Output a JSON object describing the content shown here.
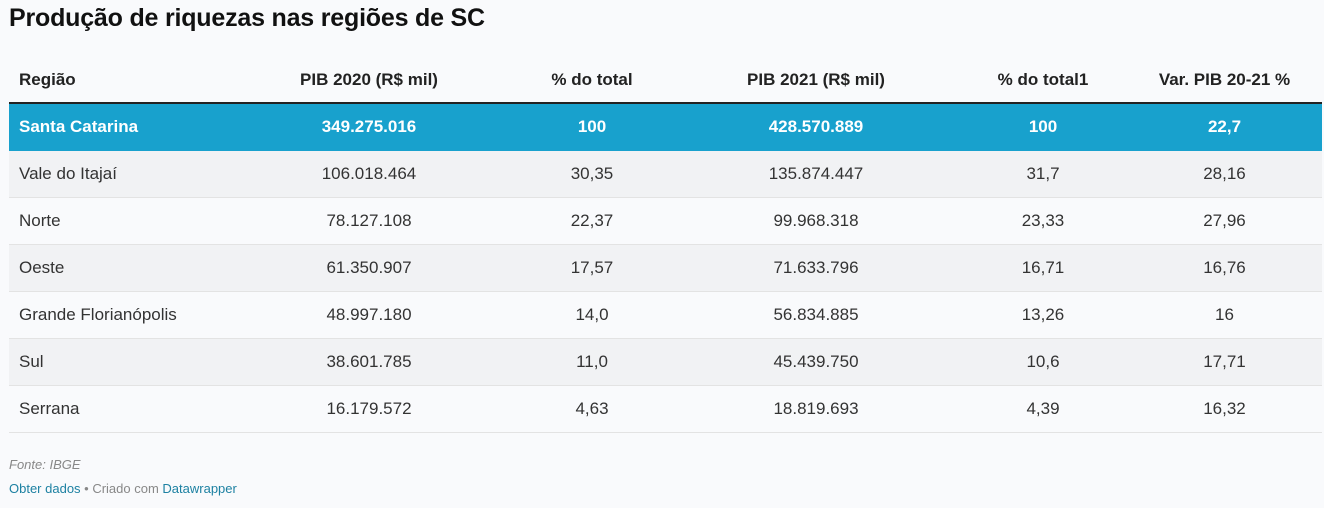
{
  "chart_data": {
    "type": "table",
    "title": "Produção de riquezas nas regiões de SC",
    "columns": [
      "Região",
      "PIB 2020 (R$ mil)",
      "% do total",
      "PIB 2021 (R$ mil)",
      "% do total1",
      "Var. PIB 20-21 %"
    ],
    "rows": [
      [
        "Santa Catarina",
        "349.275.016",
        "100",
        "428.570.889",
        "100",
        "22,7"
      ],
      [
        "Vale do Itajaí",
        "106.018.464",
        "30,35",
        "135.874.447",
        "31,7",
        "28,16"
      ],
      [
        "Norte",
        "78.127.108",
        "22,37",
        "99.968.318",
        "23,33",
        "27,96"
      ],
      [
        "Oeste",
        "61.350.907",
        "17,57",
        "71.633.796",
        "16,71",
        "16,76"
      ],
      [
        "Grande Florianópolis",
        "48.997.180",
        "14,0",
        "56.834.885",
        "13,26",
        "16"
      ],
      [
        "Sul",
        "38.601.785",
        "11,0",
        "45.439.750",
        "10,6",
        "17,71"
      ],
      [
        "Serrana",
        "16.179.572",
        "4,63",
        "18.819.693",
        "4,39",
        "16,32"
      ]
    ],
    "highlight_row": 0,
    "colors": {
      "highlight": "#18a1cd",
      "alt_row": "#f1f2f4",
      "link": "#1d81a2"
    }
  },
  "footer": {
    "source": "Fonte: IBGE",
    "get_data_label": "Obter dados",
    "separator": " • Criado com ",
    "tool_label": "Datawrapper"
  }
}
